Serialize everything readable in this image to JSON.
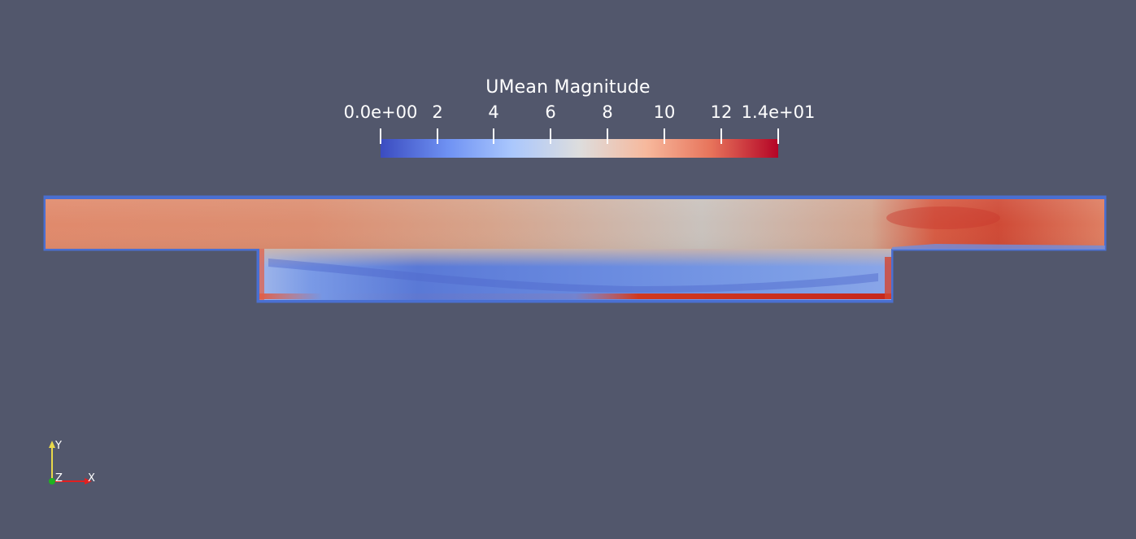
{
  "colorbar": {
    "title": "UMean Magnitude",
    "range": [
      0,
      14
    ],
    "ticks": [
      "0.0e+00",
      "2",
      "4",
      "6",
      "8",
      "10",
      "12",
      "1.4e+01"
    ],
    "colormap": [
      "#3b4cc0",
      "#6f92f3",
      "#aac7fd",
      "#dddddd",
      "#f7b89c",
      "#e7745b",
      "#b40426"
    ]
  },
  "axes": {
    "x": "X",
    "y": "Y",
    "z": "Z"
  },
  "colors": {
    "background": "#52576c",
    "x_axis": "#e02020",
    "y_axis": "#e8d84a",
    "z_axis": "#1fb31f"
  }
}
